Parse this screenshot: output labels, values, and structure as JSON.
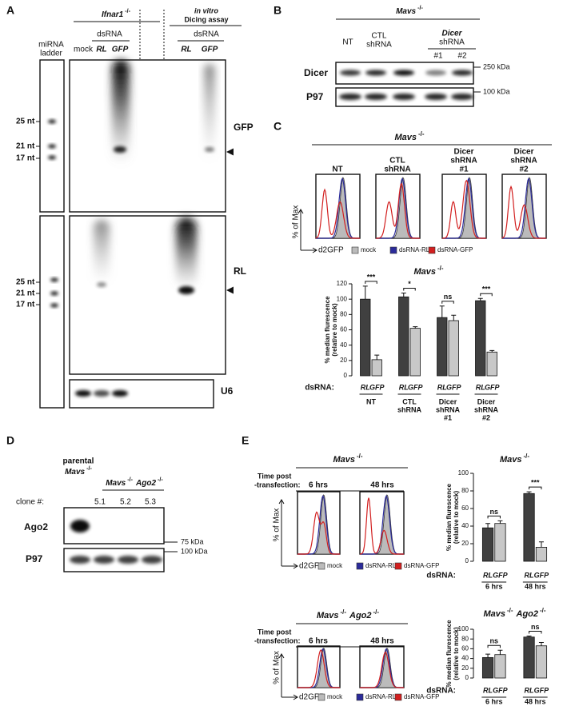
{
  "panels": {
    "A": {
      "label": "A",
      "genotype": [
        [
          "Ifnar1",
          "-/-"
        ]
      ],
      "assay": [
        "in vitro",
        "Dicing assay"
      ],
      "dsrna": "dsRNA",
      "ladder": [
        "miRNA",
        "ladder"
      ],
      "lanes": [
        "mock",
        "RL",
        "GFP",
        "RL",
        "GFP"
      ],
      "probes": [
        "GFP",
        "RL",
        "U6"
      ],
      "size_markers": [
        "25 nt",
        "21 nt",
        "17 nt"
      ]
    },
    "B": {
      "label": "B",
      "genotype": [
        [
          "Mavs",
          "-/-"
        ]
      ],
      "lanes": {
        "nt": "NT",
        "ctl": [
          "CTL",
          "shRNA"
        ],
        "dicer": [
          "Dicer",
          "shRNA"
        ],
        "clones": [
          "#1",
          "#2"
        ]
      },
      "rows": [
        "Dicer",
        "P97"
      ],
      "sizes": [
        "250 kDa",
        "100 kDa"
      ]
    },
    "C": {
      "label": "C",
      "genotype": [
        [
          "Mavs",
          "-/-"
        ]
      ],
      "histograms": [
        [
          "NT"
        ],
        [
          "CTL",
          "shRNA"
        ],
        [
          "Dicer",
          "shRNA",
          "#1"
        ],
        [
          "Dicer",
          "shRNA",
          "#2"
        ]
      ],
      "y_label": "% of Max",
      "x_label": "d2GFP",
      "legend": [
        "mock",
        "dsRNA-RL",
        "dsRNA-GFP"
      ]
    },
    "D": {
      "label": "D",
      "parental": [
        "parental",
        [
          [
            "Mavs",
            "-/-"
          ]
        ]
      ],
      "knockout": [
        [
          "Mavs",
          "-/-"
        ],
        [
          "Ago2",
          "-/-"
        ]
      ],
      "clone_label": "clone #:",
      "clones": [
        "5.1",
        "5.2",
        "5.3"
      ],
      "rows": [
        "Ago2",
        "P97"
      ],
      "sizes": [
        "75 kDa",
        "100 kDa"
      ]
    },
    "E": {
      "label": "E",
      "blocks": [
        {
          "genotype": [
            [
              "Mavs",
              "-/-"
            ]
          ],
          "time_label": [
            "Time post",
            "-transfection:"
          ],
          "times": [
            "6 hrs",
            "48 hrs"
          ],
          "y_label": "% of Max",
          "x_label": "d2GFP",
          "legend": [
            "mock",
            "dsRNA-RL",
            "dsRNA-GFP"
          ]
        },
        {
          "genotype": [
            [
              "Mavs",
              "-/-"
            ],
            [
              "Ago2",
              "-/-"
            ]
          ],
          "time_label": [
            "Time post",
            "-transfection:"
          ],
          "times": [
            "6 hrs",
            "48 hrs"
          ],
          "y_label": "% of Max",
          "x_label": "d2GFP",
          "legend": [
            "mock",
            "dsRNA-RL",
            "dsRNA-GFP"
          ]
        }
      ]
    }
  },
  "chart_data": [
    {
      "type": "bar",
      "title": [
        [
          "Mavs",
          "-/-"
        ]
      ],
      "ylabel": [
        "% median flurescence",
        "(relative to mock)"
      ],
      "xlabel": "dsRNA:",
      "categories": [
        [
          "NT"
        ],
        [
          "CTL",
          "shRNA"
        ],
        [
          "Dicer",
          "shRNA",
          "#1"
        ],
        [
          "Dicer",
          "shRNA",
          "#2"
        ]
      ],
      "series": [
        {
          "name": "RL",
          "color": "#404040",
          "values": [
            100,
            103,
            76,
            98
          ],
          "errors": [
            17,
            5,
            15,
            3
          ]
        },
        {
          "name": "GFP",
          "color": "#c8c8c8",
          "values": [
            21,
            62,
            72,
            31
          ],
          "errors": [
            6,
            2,
            7,
            2
          ]
        }
      ],
      "significance": [
        "***",
        "*",
        "ns",
        "***"
      ],
      "ylim": [
        0,
        120
      ],
      "yticks": [
        0,
        20,
        40,
        60,
        80,
        100,
        120
      ]
    },
    {
      "type": "bar",
      "title": [
        [
          "Mavs",
          "-/-"
        ]
      ],
      "ylabel": [
        "% median flurescence",
        "(relative to mock)"
      ],
      "xlabel": "dsRNA:",
      "categories": [
        [
          "6 hrs"
        ],
        [
          "48 hrs"
        ]
      ],
      "series": [
        {
          "name": "RL",
          "color": "#404040",
          "values": [
            38,
            77
          ],
          "errors": [
            5,
            2
          ]
        },
        {
          "name": "GFP",
          "color": "#c8c8c8",
          "values": [
            43,
            16
          ],
          "errors": [
            3,
            6
          ]
        }
      ],
      "significance": [
        "ns",
        "***"
      ],
      "ylim": [
        0,
        100
      ],
      "yticks": [
        0,
        20,
        40,
        60,
        80,
        100
      ]
    },
    {
      "type": "bar",
      "title": [
        [
          "Mavs",
          "-/-"
        ],
        [
          "Ago2",
          "-/-"
        ]
      ],
      "ylabel": [
        "% median flurescence",
        "(relative to mock)"
      ],
      "xlabel": "dsRNA:",
      "categories": [
        [
          "6 hrs"
        ],
        [
          "48 hrs"
        ]
      ],
      "series": [
        {
          "name": "RL",
          "color": "#404040",
          "values": [
            42,
            84
          ],
          "errors": [
            7,
            2
          ]
        },
        {
          "name": "GFP",
          "color": "#c8c8c8",
          "values": [
            48,
            66
          ],
          "errors": [
            9,
            7
          ]
        }
      ],
      "significance": [
        "ns",
        "ns"
      ],
      "ylim": [
        0,
        100
      ],
      "yticks": [
        0,
        20,
        40,
        60,
        80,
        100
      ]
    }
  ]
}
